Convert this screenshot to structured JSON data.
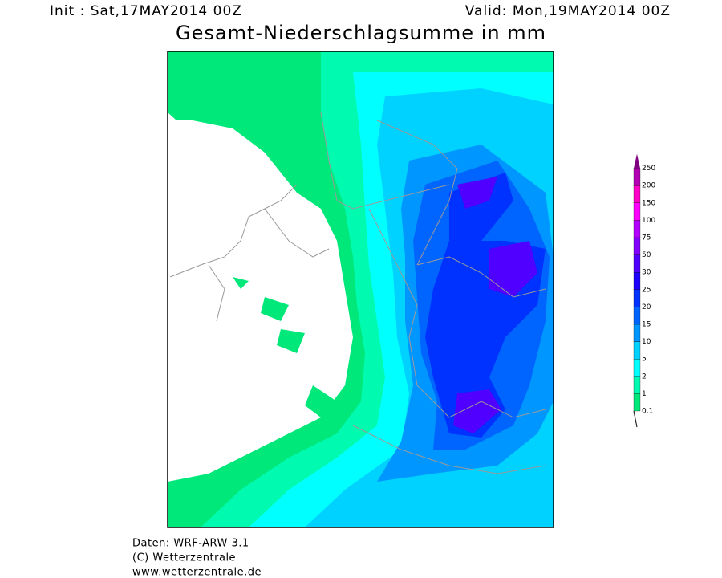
{
  "header": {
    "init": "Init : Sat,17MAY2014 00Z",
    "valid": "Valid: Mon,19MAY2014 00Z",
    "title": "Gesamt-Niederschlagsumme in mm"
  },
  "legend": {
    "labels": [
      "0.1",
      "1",
      "2",
      "5",
      "10",
      "15",
      "20",
      "25",
      "30",
      "50",
      "75",
      "100",
      "150",
      "200",
      "250"
    ],
    "colors": [
      "#00e87a",
      "#00fab0",
      "#00ffff",
      "#00d2ff",
      "#0096ff",
      "#0064ff",
      "#0032ff",
      "#1e00ff",
      "#5000ff",
      "#8200ff",
      "#b400ff",
      "#ff00ff",
      "#ff00c8",
      "#b400b4",
      "#800080"
    ]
  },
  "footer": {
    "lines": [
      "Daten: WRF-ARW 3.1",
      "(C) Wetterzentrale",
      "www.wetterzentrale.de"
    ]
  }
}
